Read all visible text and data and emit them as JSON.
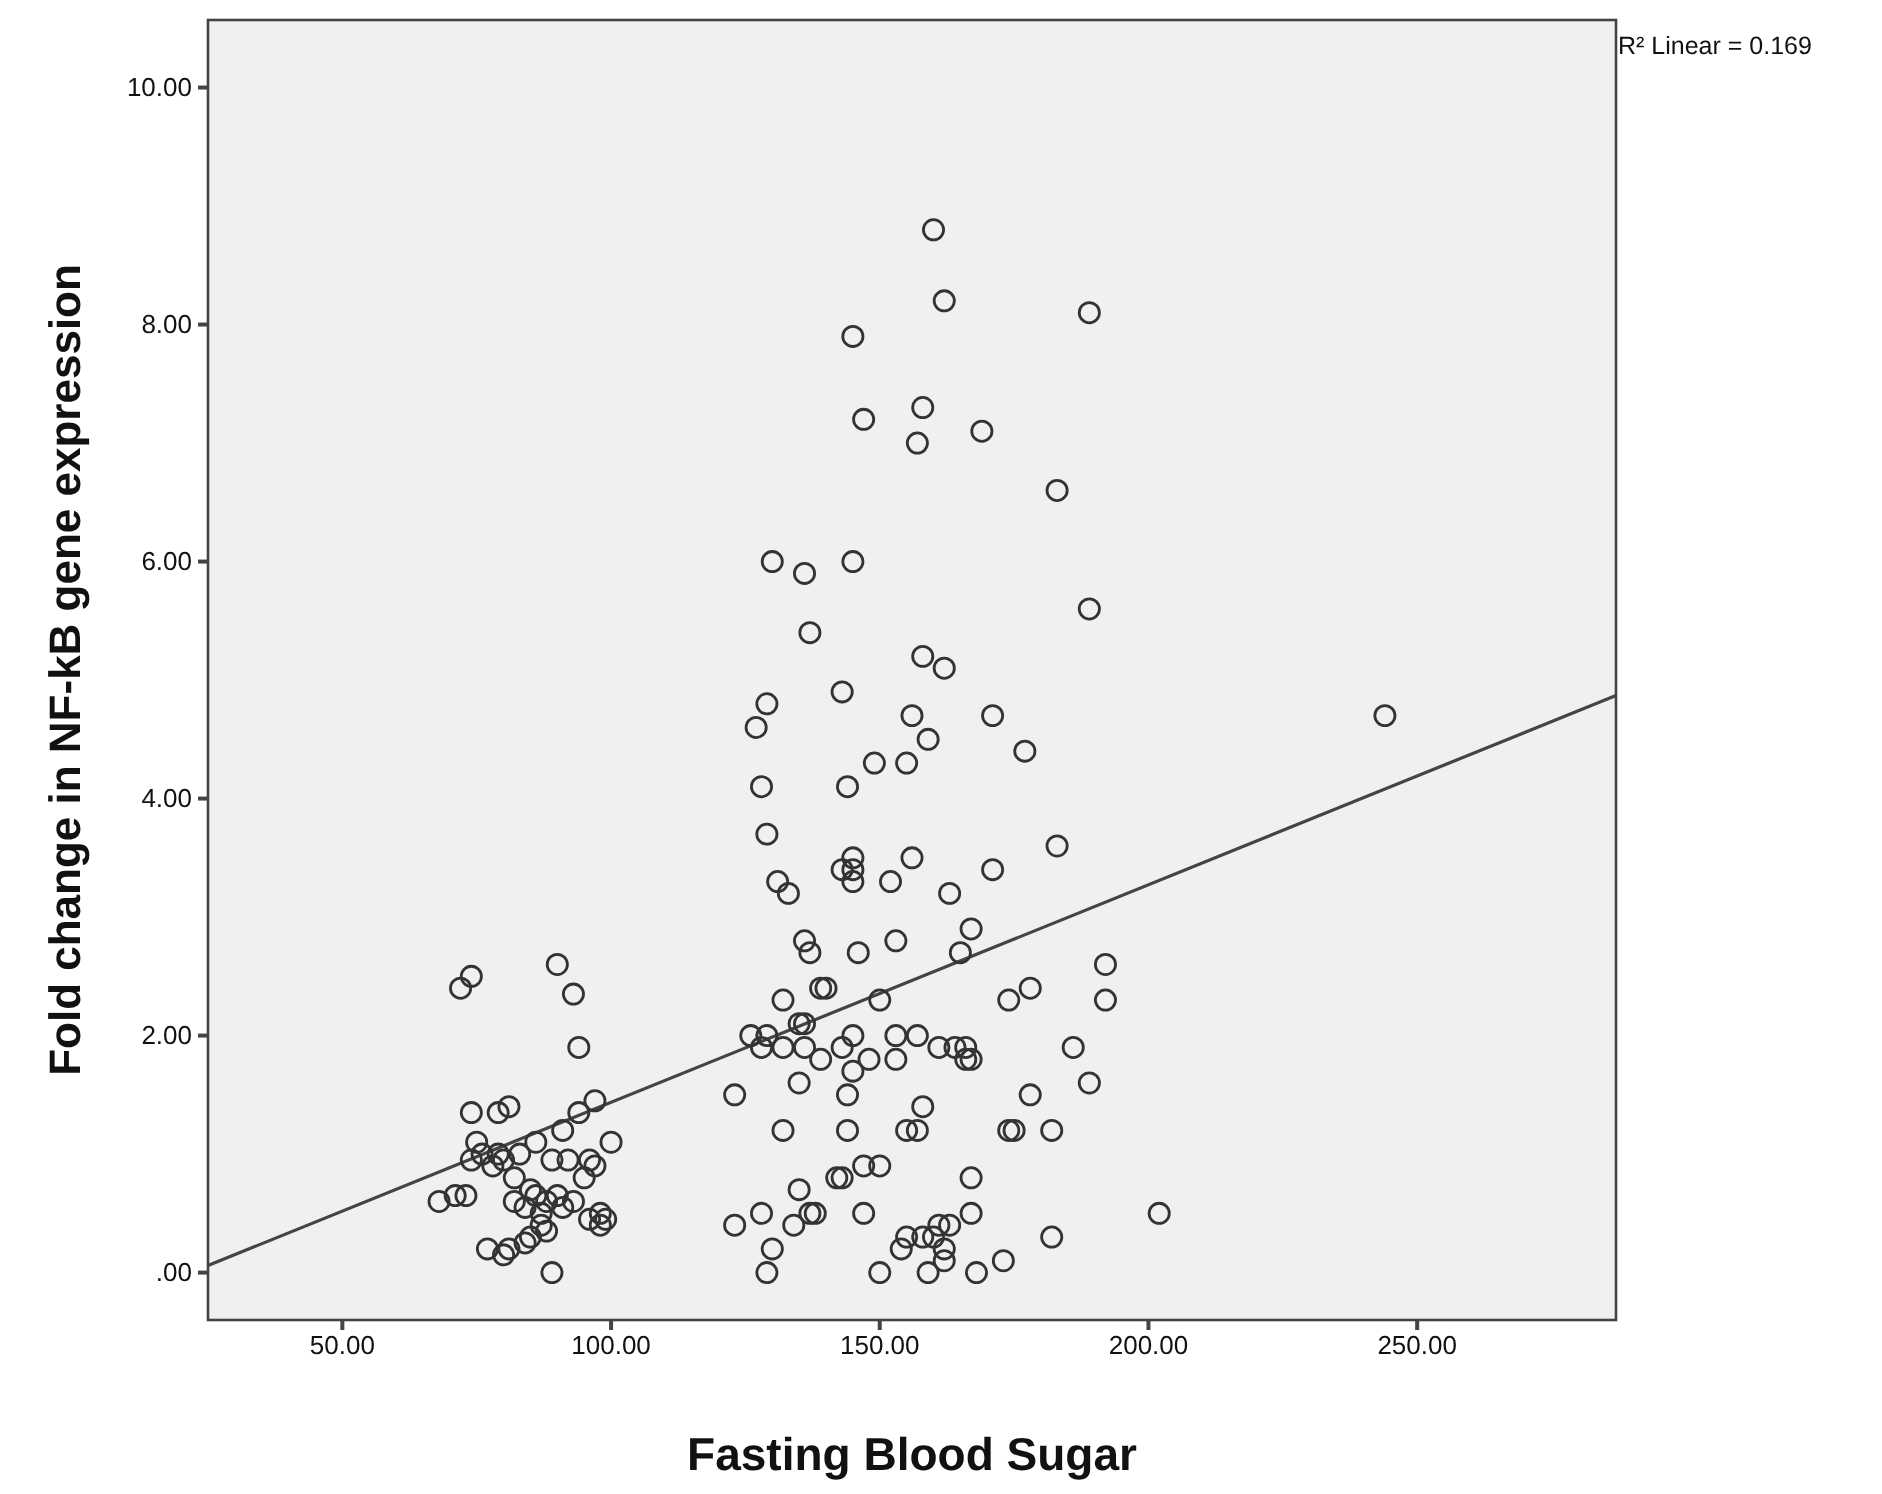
{
  "chart_data": {
    "type": "scatter",
    "xlabel": "Fasting Blood Sugar",
    "ylabel": "Fold change in NF-kB gene expression",
    "annotations": [
      "R² Linear = 0.169"
    ],
    "xlim": [
      25,
      287
    ],
    "ylim": [
      -0.4,
      10.57
    ],
    "xticks": [
      {
        "value": 50,
        "label": "50.00"
      },
      {
        "value": 100,
        "label": "100.00"
      },
      {
        "value": 150,
        "label": "150.00"
      },
      {
        "value": 200,
        "label": "200.00"
      },
      {
        "value": 250,
        "label": "250.00"
      }
    ],
    "yticks": [
      {
        "value": 0,
        "label": ".00"
      },
      {
        "value": 2,
        "label": "2.00"
      },
      {
        "value": 4,
        "label": "4.00"
      },
      {
        "value": 6,
        "label": "6.00"
      },
      {
        "value": 8,
        "label": "8.00"
      },
      {
        "value": 10,
        "label": "10.00"
      }
    ],
    "marker": "circle",
    "grid": false,
    "series": [
      {
        "color": "#333333",
        "x": [
          68,
          71,
          73,
          72,
          74,
          74,
          75,
          74,
          76,
          77,
          78,
          79,
          79,
          80,
          81,
          81,
          82,
          82,
          83,
          84,
          85,
          85,
          86,
          86,
          87,
          88,
          88,
          89,
          89,
          90,
          90,
          91,
          91,
          92,
          93,
          93,
          94,
          94,
          95,
          96,
          96,
          97,
          97,
          98,
          98,
          99,
          100,
          87,
          84,
          80,
          123,
          123,
          126,
          127,
          128,
          128,
          128,
          129,
          129,
          129,
          129,
          130,
          130,
          131,
          132,
          132,
          132,
          133,
          134,
          135,
          135,
          135,
          136,
          136,
          136,
          136,
          137,
          137,
          137,
          138,
          139,
          139,
          140,
          142,
          143,
          143,
          143,
          143,
          144,
          144,
          144,
          145,
          145,
          145,
          145,
          145,
          145,
          145,
          146,
          147,
          147,
          147,
          148,
          149,
          150,
          150,
          150,
          152,
          153,
          153,
          153,
          154,
          155,
          155,
          155,
          156,
          156,
          157,
          157,
          157,
          158,
          158,
          158,
          158,
          159,
          159,
          160,
          160,
          161,
          161,
          162,
          162,
          162,
          162,
          163,
          163,
          164,
          165,
          166,
          166,
          167,
          167,
          167,
          167,
          168,
          169,
          171,
          171,
          173,
          174,
          174,
          175,
          177,
          178,
          178,
          182,
          182,
          183,
          183,
          186,
          189,
          189,
          189,
          192,
          192,
          202,
          244
        ],
        "values": [
          0.6,
          0.65,
          0.65,
          2.4,
          2.5,
          1.35,
          1.1,
          0.95,
          1.0,
          0.2,
          0.9,
          1.0,
          1.35,
          0.15,
          1.4,
          0.2,
          0.8,
          0.6,
          1.0,
          0.55,
          0.3,
          0.7,
          1.1,
          0.65,
          0.5,
          0.35,
          0.6,
          0.95,
          0.0,
          2.6,
          0.65,
          1.2,
          0.55,
          0.95,
          2.35,
          0.6,
          1.9,
          1.35,
          0.8,
          0.45,
          0.95,
          1.45,
          0.9,
          0.5,
          0.4,
          0.45,
          1.1,
          0.4,
          0.25,
          0.95,
          0.4,
          1.5,
          2.0,
          4.6,
          4.1,
          1.9,
          0.5,
          4.8,
          3.7,
          2.0,
          0.0,
          6.0,
          0.2,
          3.3,
          1.9,
          2.3,
          1.2,
          3.2,
          0.4,
          2.1,
          1.6,
          0.7,
          5.9,
          2.8,
          2.1,
          1.9,
          5.4,
          2.7,
          0.5,
          0.5,
          1.8,
          2.4,
          2.4,
          0.8,
          4.9,
          3.4,
          0.8,
          1.9,
          4.1,
          1.2,
          1.5,
          7.9,
          6.0,
          3.5,
          3.3,
          3.4,
          2.0,
          1.7,
          2.7,
          7.2,
          0.5,
          0.9,
          1.8,
          4.3,
          2.3,
          0.9,
          0.0,
          3.3,
          2.8,
          1.8,
          2.0,
          0.2,
          4.3,
          1.2,
          0.3,
          4.7,
          3.5,
          7.0,
          2.0,
          1.2,
          7.3,
          5.2,
          1.4,
          0.3,
          4.5,
          0.0,
          8.8,
          0.3,
          0.4,
          1.9,
          8.2,
          5.1,
          0.1,
          0.2,
          3.2,
          0.4,
          1.9,
          2.7,
          1.9,
          1.8,
          2.9,
          1.8,
          0.8,
          0.5,
          0.0,
          7.1,
          4.7,
          3.4,
          0.1,
          2.3,
          1.2,
          1.2,
          4.4,
          2.4,
          1.5,
          1.2,
          0.3,
          6.6,
          3.6,
          1.9,
          8.1,
          5.6,
          1.6,
          2.6,
          2.3,
          0.5,
          4.7
        ]
      },
      {
        "type": "line",
        "marker": "none",
        "color": "#444444",
        "x": [
          25,
          287
        ],
        "values": [
          0.06,
          4.87
        ]
      }
    ]
  }
}
